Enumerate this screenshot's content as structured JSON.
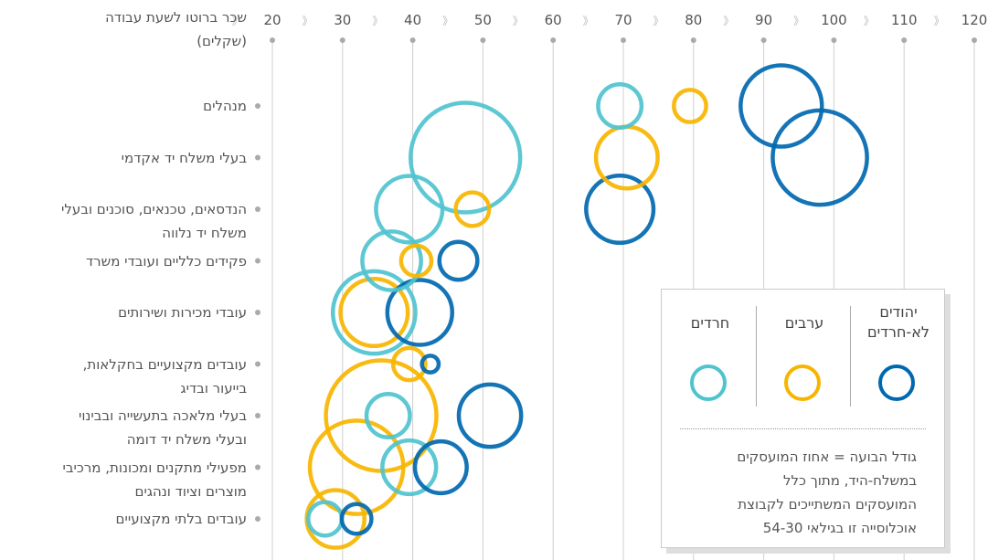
{
  "chart_data": {
    "type": "bubble",
    "x_axis": {
      "title_line1": "שכר ברוטו לשעת עבודה",
      "title_line2": "(שקלים)",
      "ticks": [
        120,
        110,
        100,
        90,
        80,
        70,
        60,
        50,
        40,
        30,
        20
      ],
      "range": [
        20,
        120
      ],
      "separator_glyph": "》"
    },
    "categories": [
      {
        "label_lines": [
          "מנהלים"
        ]
      },
      {
        "label_lines": [
          "בעלי משלח יד אקדמי"
        ]
      },
      {
        "label_lines": [
          "הנדסאים, טכנאים, סוכנים ובעלי",
          "משלח יד נלווה"
        ]
      },
      {
        "label_lines": [
          "פקידים כלליים ועובדי משרד"
        ]
      },
      {
        "label_lines": [
          "עובדי מכירות ושירותים"
        ]
      },
      {
        "label_lines": [
          "עובדים מקצועיים בחקלאות,",
          "בייעור ובדיג"
        ]
      },
      {
        "label_lines": [
          "בעלי מלאכה בתעשייה ובבינוי",
          "ובעלי משלח יד דומה"
        ]
      },
      {
        "label_lines": [
          "מפעילי מתקנים ומכונות, מרכיבי",
          "מוצרים וציוד ונהגים"
        ]
      },
      {
        "label_lines": [
          "עובדים בלתי מקצועיים"
        ]
      }
    ],
    "series": [
      {
        "name": "חרדים",
        "color": "#4fc3cf",
        "points": [
          {
            "category": 0,
            "x": 69.5,
            "size": 4.7
          },
          {
            "category": 1,
            "x": 47.5,
            "size": 30
          },
          {
            "category": 2,
            "x": 39.5,
            "size": 11
          },
          {
            "category": 3,
            "x": 37,
            "size": 8.6
          },
          {
            "category": 4,
            "x": 34.5,
            "size": 17
          },
          {
            "category": 6,
            "x": 36.5,
            "size": 4.7
          },
          {
            "category": 7,
            "x": 39.5,
            "size": 7.2
          },
          {
            "category": 8,
            "x": 27.5,
            "size": 2.8
          }
        ]
      },
      {
        "name": "ערבים",
        "color": "#f7b500",
        "points": [
          {
            "category": 0,
            "x": 79.5,
            "size": 2.6
          },
          {
            "category": 1,
            "x": 70.5,
            "size": 9.5
          },
          {
            "category": 2,
            "x": 48.5,
            "size": 2.8
          },
          {
            "category": 3,
            "x": 40.5,
            "size": 2.3
          },
          {
            "category": 4,
            "x": 34.5,
            "size": 11.3
          },
          {
            "category": 5,
            "x": 39.5,
            "size": 2.6
          },
          {
            "category": 6,
            "x": 35.5,
            "size": 30.5
          },
          {
            "category": 7,
            "x": 32,
            "size": 21.8
          },
          {
            "category": 8,
            "x": 29,
            "size": 8.3
          }
        ]
      },
      {
        "name": "יהודים לא-חרדים",
        "label_lines": [
          "יהודים",
          "לא-חרדים"
        ],
        "color": "#0068b0",
        "points": [
          {
            "category": 0,
            "x": 92.5,
            "size": 16.5
          },
          {
            "category": 1,
            "x": 98,
            "size": 22.2
          },
          {
            "category": 2,
            "x": 69.5,
            "size": 11.3
          },
          {
            "category": 3,
            "x": 46.5,
            "size": 3.6
          },
          {
            "category": 4,
            "x": 41,
            "size": 10.5
          },
          {
            "category": 5,
            "x": 42.5,
            "size": 0.7
          },
          {
            "category": 6,
            "x": 51,
            "size": 9.7
          },
          {
            "category": 7,
            "x": 44,
            "size": 6.7
          },
          {
            "category": 8,
            "x": 32,
            "size": 2.2
          }
        ]
      }
    ],
    "size_unit": "percent",
    "legend": {
      "placement": "bottom-right",
      "note_lines": [
        "גודל הבועה = אחוז המועסקים",
        "במשלח-היד, מתוך כלל",
        "המועסקים המשתייכים לקבוצת",
        "אוכלוסייה זו בגילאי 54-30"
      ]
    }
  }
}
